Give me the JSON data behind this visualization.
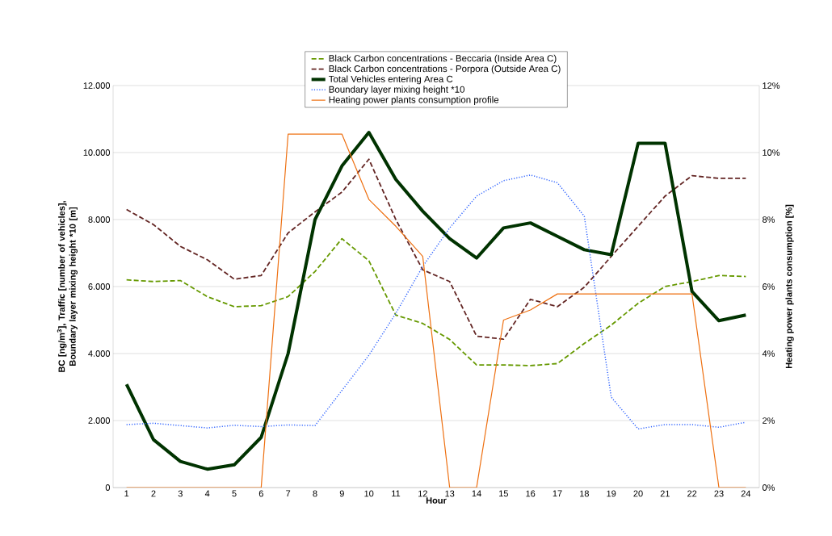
{
  "chart_data": {
    "type": "line",
    "categories": [
      "1",
      "2",
      "3",
      "4",
      "5",
      "6",
      "7",
      "8",
      "9",
      "10",
      "11",
      "12",
      "13",
      "14",
      "15",
      "16",
      "17",
      "18",
      "19",
      "20",
      "21",
      "22",
      "23",
      "24"
    ],
    "xlabel": "Hour",
    "ylabel": "BC [ng/m$^{3}$], Traffic [number of vehicles], Boundary layer mixing height *10 [m]",
    "y2label": "Heating power plants consumption [%]",
    "ylim": [
      0,
      12000
    ],
    "yticks": [
      {
        "value": 0,
        "label": "0"
      },
      {
        "value": 2000,
        "label": "2.000"
      },
      {
        "value": 4000,
        "label": "4.000"
      },
      {
        "value": 6000,
        "label": "6.000"
      },
      {
        "value": 8000,
        "label": "8.000"
      },
      {
        "value": 10000,
        "label": "10.000"
      },
      {
        "value": 12000,
        "label": "12.000"
      }
    ],
    "y2lim": [
      0,
      12
    ],
    "y2ticks": [
      {
        "value": 0,
        "label": "0%"
      },
      {
        "value": 2,
        "label": "2%"
      },
      {
        "value": 4,
        "label": "4%"
      },
      {
        "value": 6,
        "label": "6%"
      },
      {
        "value": 8,
        "label": "8%"
      },
      {
        "value": 10,
        "label": "10%"
      },
      {
        "value": 12,
        "label": "12%"
      }
    ],
    "grid": "y",
    "legend": "top",
    "marker": "none",
    "series": [
      {
        "name": "Black Carbon concentrations - Beccaria (Inside Area C)",
        "color": "#669900",
        "line_style": "dashed",
        "values": [
          6200,
          6150,
          6180,
          5700,
          5400,
          5430,
          5700,
          6450,
          7430,
          6770,
          5150,
          4900,
          4420,
          3660,
          3660,
          3640,
          3700,
          4300,
          4850,
          5500,
          6000,
          6150,
          6330,
          6300
        ]
      },
      {
        "name": "Black Carbon concentrations - Porpora (Outside Area C)",
        "color": "#632523",
        "line_style": "dashed",
        "values": [
          8300,
          7850,
          7200,
          6800,
          6220,
          6330,
          7600,
          8230,
          8820,
          9800,
          8000,
          6500,
          6150,
          4520,
          4430,
          5620,
          5400,
          5980,
          6900,
          7800,
          8700,
          9310,
          9230,
          9230
        ]
      },
      {
        "name": "Total Vehicles entering Area C",
        "color": "#003300",
        "line_style": "solid",
        "values": [
          3080,
          1430,
          780,
          550,
          680,
          1500,
          4000,
          8000,
          9600,
          10600,
          9200,
          8250,
          7430,
          6850,
          7750,
          7900,
          7500,
          7100,
          6950,
          10280,
          10280,
          5850,
          4980,
          5150
        ]
      },
      {
        "name": "Boundary layer mixing height *10",
        "color": "#3366ff",
        "line_style": "dotted",
        "values": [
          1880,
          1920,
          1850,
          1780,
          1860,
          1820,
          1870,
          1850,
          2900,
          3950,
          5200,
          6600,
          7750,
          8700,
          9160,
          9330,
          9100,
          8100,
          2700,
          1750,
          1880,
          1880,
          1800,
          1950
        ]
      },
      {
        "name": "Heating power plants consumption profile",
        "color": "#ee7011",
        "line_style": "solid",
        "axis": "y2",
        "values": [
          0,
          0,
          0,
          0,
          0,
          0,
          10.55,
          10.55,
          10.55,
          8.6,
          7.8,
          6.9,
          0,
          0,
          5,
          5.3,
          5.78,
          5.78,
          5.78,
          5.78,
          5.78,
          5.78,
          0,
          0
        ]
      }
    ]
  }
}
